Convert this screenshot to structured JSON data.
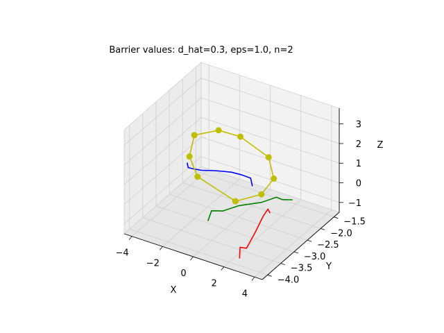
{
  "chart_data": {
    "type": "line3d",
    "title": "Barrier values: d_hat=0.3, eps=1.0, n=2",
    "xlabel": "X",
    "ylabel": "Y",
    "zlabel": "Z",
    "xlim": [
      -4.5,
      4.5
    ],
    "ylim": [
      -4.2,
      -1.3
    ],
    "zlim": [
      -1.5,
      3.8
    ],
    "x_ticks": [
      -4,
      -2,
      0,
      2,
      4
    ],
    "x_tick_labels": [
      "−4",
      "−2",
      "0",
      "2",
      "4"
    ],
    "y_ticks": [
      -4.0,
      -3.5,
      -3.0,
      -2.5,
      -2.0,
      -1.5
    ],
    "y_tick_labels": [
      "−4.0",
      "−3.5",
      "−3.0",
      "−2.5",
      "−2.0",
      "−1.5"
    ],
    "z_ticks": [
      -1,
      0,
      1,
      2,
      3
    ],
    "z_tick_labels": [
      "−1",
      "0",
      "1",
      "2",
      "3"
    ],
    "grid": true,
    "series": [
      {
        "color": "#0000ff",
        "marker": "none",
        "points": [
          [
            -4.2,
            -2.0,
            -0.4
          ],
          [
            -4.05,
            -2.05,
            -0.55
          ],
          [
            -3.6,
            -2.1,
            -0.45
          ],
          [
            -3.0,
            -2.15,
            -0.3
          ],
          [
            -2.0,
            -2.2,
            0.0
          ],
          [
            -0.8,
            -2.3,
            0.35
          ],
          [
            0.0,
            -2.4,
            0.55
          ],
          [
            0.8,
            -2.5,
            0.7
          ],
          [
            1.0,
            -2.55,
            0.4
          ]
        ]
      },
      {
        "color": "#008000",
        "marker": "none",
        "points": [
          [
            -0.6,
            -3.3,
            -0.9
          ],
          [
            -0.45,
            -3.25,
            -0.4
          ],
          [
            0.2,
            -3.2,
            -0.3
          ],
          [
            1.0,
            -3.05,
            0.0
          ],
          [
            2.2,
            -2.9,
            0.3
          ],
          [
            3.0,
            -2.8,
            0.65
          ],
          [
            3.3,
            -2.75,
            0.55
          ],
          [
            3.8,
            -2.65,
            0.55
          ]
        ]
      },
      {
        "color": "#ff0000",
        "marker": "none",
        "points": [
          [
            2.5,
            -3.9,
            -1.3
          ],
          [
            2.45,
            -3.85,
            -0.8
          ],
          [
            2.7,
            -3.75,
            -0.9
          ],
          [
            3.0,
            -3.6,
            -0.2
          ],
          [
            3.25,
            -3.45,
            0.5
          ],
          [
            3.4,
            -3.35,
            0.8
          ],
          [
            3.45,
            -3.3,
            0.55
          ]
        ]
      },
      {
        "color": "#bfbf00",
        "marker": "circle",
        "points": [
          [
            0.59,
            -2.95,
            0.0
          ],
          [
            -1.88,
            -2.95,
            0.61
          ],
          [
            -2.41,
            -2.95,
            1.5
          ],
          [
            -2.09,
            -2.95,
            2.67
          ],
          [
            -0.51,
            -2.95,
            3.33
          ],
          [
            0.91,
            -2.95,
            3.37
          ],
          [
            2.75,
            -2.95,
            2.8
          ],
          [
            3.09,
            -2.95,
            1.8
          ],
          [
            2.28,
            -2.95,
            0.79
          ],
          [
            0.59,
            -2.95,
            0.0
          ]
        ]
      }
    ]
  }
}
